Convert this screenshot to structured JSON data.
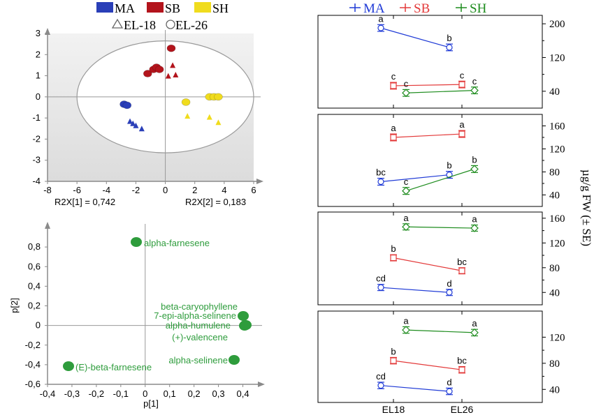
{
  "colors": {
    "MA": "#2a3fb8",
    "SB": "#b3141c",
    "SH": "#f0dc1e",
    "MA_line": "#1f3ad6",
    "SB_line": "#e33a3a",
    "SH_line": "#1e8c1e",
    "loading": "#2e9c3c",
    "ellipse": "#9a9a9a",
    "plot_bg_top": "#f2f2f2",
    "plot_bg_bottom": "#dcdcdc"
  },
  "legend_left": {
    "groups": [
      {
        "name": "MA",
        "color_key": "MA",
        "label": "MA"
      },
      {
        "name": "SB",
        "color_key": "SB",
        "label": "SB"
      },
      {
        "name": "SH",
        "color_key": "SH",
        "label": "SH"
      }
    ],
    "shapes": [
      {
        "symbol": "triangle",
        "label": "EL-18"
      },
      {
        "symbol": "circle",
        "label": "EL-26"
      }
    ]
  },
  "legend_right": [
    {
      "name": "MA",
      "color_key": "MA_line",
      "label": "MA"
    },
    {
      "name": "SB",
      "color_key": "SB_line",
      "label": "SB"
    },
    {
      "name": "SH",
      "color_key": "SH_line",
      "label": "SH"
    }
  ],
  "right_ylabel": "µg/g FW (± SE)",
  "x_categories": [
    "EL18",
    "EL26"
  ],
  "chart_data": [
    {
      "type": "scatter",
      "name": "scores",
      "xlim": [
        -8,
        6
      ],
      "ylim": [
        -4,
        3
      ],
      "xticks": [
        -8,
        -6,
        -4,
        -2,
        0,
        2,
        4,
        6
      ],
      "yticks": [
        -4,
        -3,
        -2,
        -1,
        0,
        1,
        2,
        3
      ],
      "xlabel": "R2X[1] = 0,742",
      "ylabel": "R2X[2] = 0,183",
      "ellipse": {
        "rx": 6.0,
        "ry": 2.65
      },
      "points": [
        {
          "x": -2.8,
          "y": -0.35,
          "group": "MA",
          "shape": "circle"
        },
        {
          "x": -2.6,
          "y": -0.4,
          "group": "MA",
          "shape": "circle"
        },
        {
          "x": -2.4,
          "y": -1.15,
          "group": "MA",
          "shape": "triangle"
        },
        {
          "x": -2.2,
          "y": -1.25,
          "group": "MA",
          "shape": "triangle"
        },
        {
          "x": -2.0,
          "y": -1.35,
          "group": "MA",
          "shape": "triangle"
        },
        {
          "x": -1.6,
          "y": -1.5,
          "group": "MA",
          "shape": "triangle"
        },
        {
          "x": -1.2,
          "y": 1.1,
          "group": "SB",
          "shape": "circle"
        },
        {
          "x": -0.8,
          "y": 1.3,
          "group": "SB",
          "shape": "circle"
        },
        {
          "x": -0.6,
          "y": 1.4,
          "group": "SB",
          "shape": "circle"
        },
        {
          "x": -0.4,
          "y": 1.3,
          "group": "SB",
          "shape": "circle"
        },
        {
          "x": 0.4,
          "y": 2.3,
          "group": "SB",
          "shape": "circle"
        },
        {
          "x": 0.2,
          "y": 1.0,
          "group": "SB",
          "shape": "triangle"
        },
        {
          "x": 0.5,
          "y": 1.5,
          "group": "SB",
          "shape": "triangle"
        },
        {
          "x": 0.7,
          "y": 1.05,
          "group": "SB",
          "shape": "triangle"
        },
        {
          "x": 1.4,
          "y": -0.25,
          "group": "SH",
          "shape": "circle"
        },
        {
          "x": 3.0,
          "y": 0.0,
          "group": "SH",
          "shape": "circle"
        },
        {
          "x": 3.3,
          "y": 0.0,
          "group": "SH",
          "shape": "circle"
        },
        {
          "x": 3.6,
          "y": 0.0,
          "group": "SH",
          "shape": "circle"
        },
        {
          "x": 1.5,
          "y": -0.9,
          "group": "SH",
          "shape": "triangle"
        },
        {
          "x": 3.0,
          "y": -0.95,
          "group": "SH",
          "shape": "triangle"
        },
        {
          "x": 3.6,
          "y": -1.2,
          "group": "SH",
          "shape": "triangle"
        }
      ]
    },
    {
      "type": "scatter",
      "name": "loadings",
      "xlim": [
        -0.4,
        0.45
      ],
      "ylim": [
        -0.6,
        1.0
      ],
      "xticks": [
        -0.4,
        -0.3,
        -0.2,
        -0.1,
        0,
        0.1,
        0.2,
        0.3,
        0.4
      ],
      "yticks": [
        -0.6,
        -0.4,
        -0.2,
        0,
        0.2,
        0.4,
        0.6,
        0.8
      ],
      "xtick_labels": [
        "-0,4",
        "-0,3",
        "-0,2",
        "-0,1",
        "0",
        "0,1",
        "0,2",
        "0,3",
        "0,4"
      ],
      "ytick_labels": [
        "-0,6",
        "-0,4",
        "-0,2",
        "0",
        "0,2",
        "0,4",
        "0,6",
        "0,8"
      ],
      "xlabel": "p[1]",
      "ylabel": "p[2]",
      "points": [
        {
          "x": -0.01,
          "y": 0.82,
          "label": "alpha-farnesene",
          "anchor": "start"
        },
        {
          "x": 0.43,
          "y": 0.08,
          "label": "beta-caryophyllene",
          "anchor": "end"
        },
        {
          "x": 0.44,
          "y": 0.0,
          "label": "7-epi-alpha-selinene",
          "anchor": "end"
        },
        {
          "x": 0.445,
          "y": -0.005,
          "label": "alpha-humulene",
          "anchor": "end"
        },
        {
          "x": 0.44,
          "y": -0.01,
          "label": "(+)-valencene",
          "anchor": "end"
        },
        {
          "x": 0.39,
          "y": -0.34,
          "label": "alpha-selinene",
          "anchor": "end"
        },
        {
          "x": -0.335,
          "y": -0.42,
          "label": "(E)-beta-farnesene",
          "anchor": "start"
        }
      ]
    },
    {
      "type": "line",
      "name": "panel1",
      "categories": [
        "EL18",
        "EL26"
      ],
      "ylim": [
        0,
        220
      ],
      "yticks": [
        40,
        120,
        200
      ],
      "series": [
        {
          "name": "MA",
          "values": [
            190,
            144
          ],
          "err": [
            8,
            8
          ],
          "letters": [
            "a",
            "b"
          ],
          "offset": -0.18
        },
        {
          "name": "SB",
          "values": [
            53,
            56
          ],
          "err": [
            8,
            8
          ],
          "letters": [
            "c",
            "c"
          ],
          "offset": 0.0
        },
        {
          "name": "SH",
          "values": [
            36,
            42
          ],
          "err": [
            8,
            8
          ],
          "letters": [
            "c",
            "c"
          ],
          "offset": 0.18
        }
      ]
    },
    {
      "type": "line",
      "name": "panel2",
      "categories": [
        "EL18",
        "EL26"
      ],
      "ylim": [
        20,
        180
      ],
      "yticks": [
        40,
        80,
        120,
        160
      ],
      "series": [
        {
          "name": "MA",
          "values": [
            63,
            75
          ],
          "err": [
            6,
            6
          ],
          "letters": [
            "bc",
            "b"
          ],
          "offset": -0.18
        },
        {
          "name": "SB",
          "values": [
            140,
            146
          ],
          "err": [
            6,
            6
          ],
          "letters": [
            "a",
            "a"
          ],
          "offset": 0.0
        },
        {
          "name": "SH",
          "values": [
            47,
            85
          ],
          "err": [
            6,
            6
          ],
          "letters": [
            "c",
            "b"
          ],
          "offset": 0.18
        }
      ]
    },
    {
      "type": "line",
      "name": "panel3",
      "categories": [
        "EL18",
        "EL26"
      ],
      "ylim": [
        20,
        170
      ],
      "yticks": [
        40,
        80,
        120,
        160
      ],
      "series": [
        {
          "name": "MA",
          "values": [
            48,
            40
          ],
          "err": [
            5,
            5
          ],
          "letters": [
            "cd",
            "d"
          ],
          "offset": -0.18
        },
        {
          "name": "SB",
          "values": [
            96,
            75
          ],
          "err": [
            5,
            5
          ],
          "letters": [
            "b",
            "bc"
          ],
          "offset": 0.0
        },
        {
          "name": "SH",
          "values": [
            146,
            144
          ],
          "err": [
            5,
            5
          ],
          "letters": [
            "a",
            "a"
          ],
          "offset": 0.18
        }
      ]
    },
    {
      "type": "line",
      "name": "panel4",
      "categories": [
        "EL18",
        "EL26"
      ],
      "ylim": [
        20,
        160
      ],
      "yticks": [
        40,
        80,
        120
      ],
      "series": [
        {
          "name": "MA",
          "values": [
            46,
            37
          ],
          "err": [
            5,
            5
          ],
          "letters": [
            "cd",
            "d"
          ],
          "offset": -0.18
        },
        {
          "name": "SB",
          "values": [
            84,
            70
          ],
          "err": [
            5,
            5
          ],
          "letters": [
            "b",
            "bc"
          ],
          "offset": 0.0
        },
        {
          "name": "SH",
          "values": [
            131,
            127
          ],
          "err": [
            5,
            5
          ],
          "letters": [
            "a",
            "a"
          ],
          "offset": 0.18
        }
      ]
    }
  ]
}
